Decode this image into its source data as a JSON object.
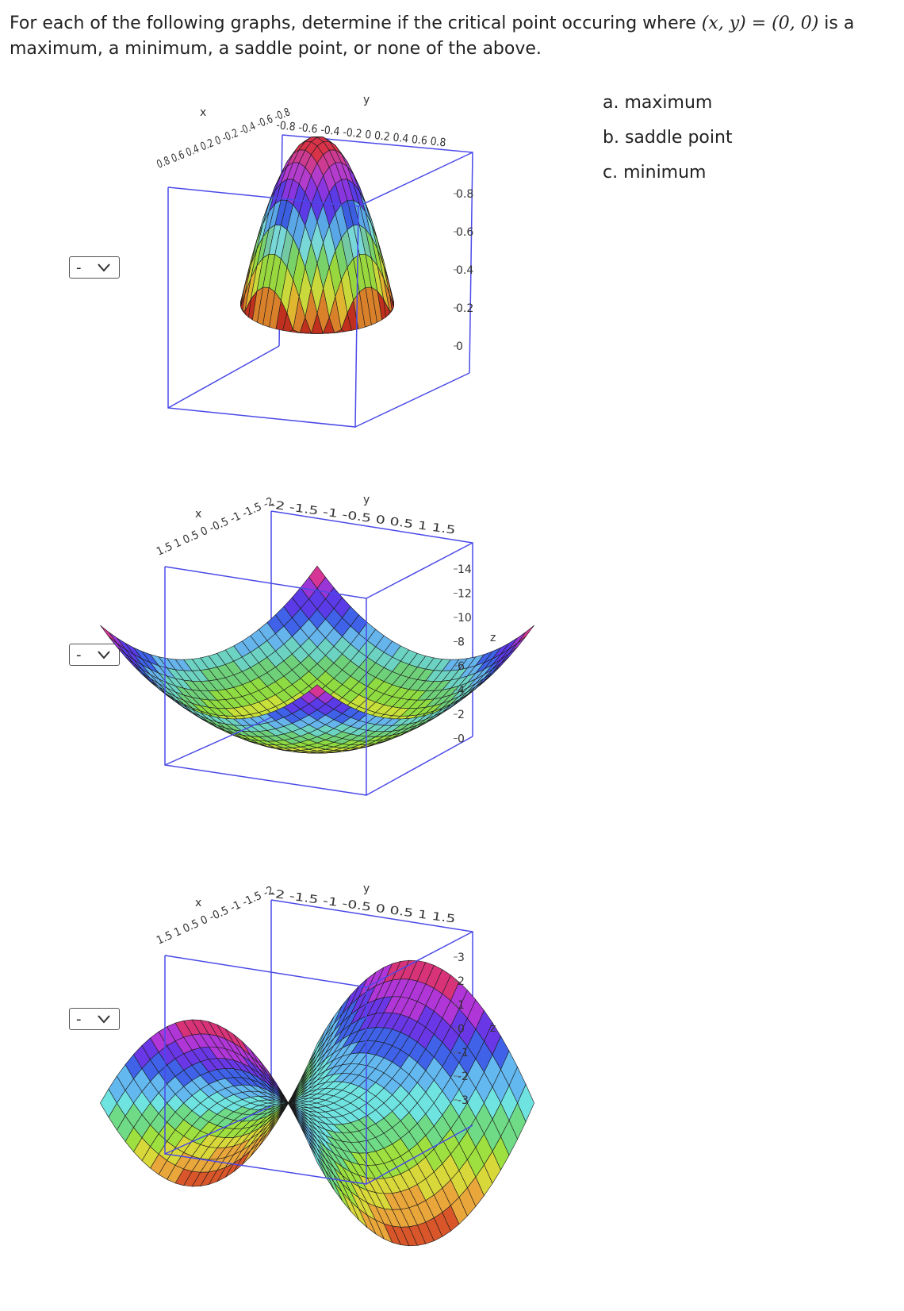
{
  "question": {
    "before": "For each of the following graphs, determine if the critical point occuring where ",
    "math": "(x, y) = (0, 0)",
    "after": " is a maximum, a minimum, a saddle point, or none of the above."
  },
  "options": [
    "a. maximum",
    "b. saddle point",
    "c. minimum"
  ],
  "selects": [
    {
      "value": "-"
    },
    {
      "value": "-"
    },
    {
      "value": "-"
    }
  ],
  "graphs": [
    {
      "surface": "dome",
      "x_label": "x",
      "y_label": "y",
      "z_label": "",
      "x_ticks": "0.8 0.6 0.4 0.2 0 -0.2 -0.4 -0.6 -0.8",
      "y_ticks": "-0.8 -0.6 -0.4 -0.2 0 0.2 0.4 0.6 0.8",
      "z_ticks": [
        "0.8",
        "0.6",
        "0.4",
        "0.2",
        "0"
      ],
      "colors": [
        "#c0301e",
        "#d9802a",
        "#e0b52f",
        "#c9d83a",
        "#98d83e",
        "#79d16a",
        "#73c9a4",
        "#78d7d7",
        "#5aa7e8",
        "#3c5ee0",
        "#5a3be5",
        "#8a36e0",
        "#b43ccd",
        "#cc3a92",
        "#d9334a"
      ]
    },
    {
      "surface": "bowl",
      "x_label": "x",
      "y_label": "y",
      "z_label": "z",
      "x_ticks": "1.5 1 0.5 0 -0.5 -1 -1.5 -2",
      "y_ticks": "-2 -1.5 -1 -0.5 0 0.5 1 1.5",
      "z_ticks": [
        "14",
        "12",
        "10",
        "8",
        "6",
        "4",
        "2",
        "0"
      ],
      "colors": [
        "#f2d23a",
        "#c8e03a",
        "#8fdc42",
        "#6fd07a",
        "#6cd3c2",
        "#66b4ec",
        "#3f62e8",
        "#5b3ae8",
        "#9a36d8",
        "#d63595"
      ]
    },
    {
      "surface": "saddle",
      "x_label": "x",
      "y_label": "y",
      "z_label": "z",
      "x_ticks": "1.5 1 0.5 0 -0.5 -1 -1.5 -2",
      "y_ticks": "-2 -1.5 -1 -0.5 0 0.5 1 1.5",
      "z_ticks": [
        "3",
        "2",
        "1",
        "0",
        "-1",
        "-2",
        "-3"
      ],
      "colors": [
        "#d9562a",
        "#e9a63a",
        "#d8d83a",
        "#9ee03f",
        "#6fdb86",
        "#6fe3e0",
        "#63b8f0",
        "#3f62e8",
        "#6a37e6",
        "#b036d8",
        "#d83378"
      ]
    }
  ]
}
